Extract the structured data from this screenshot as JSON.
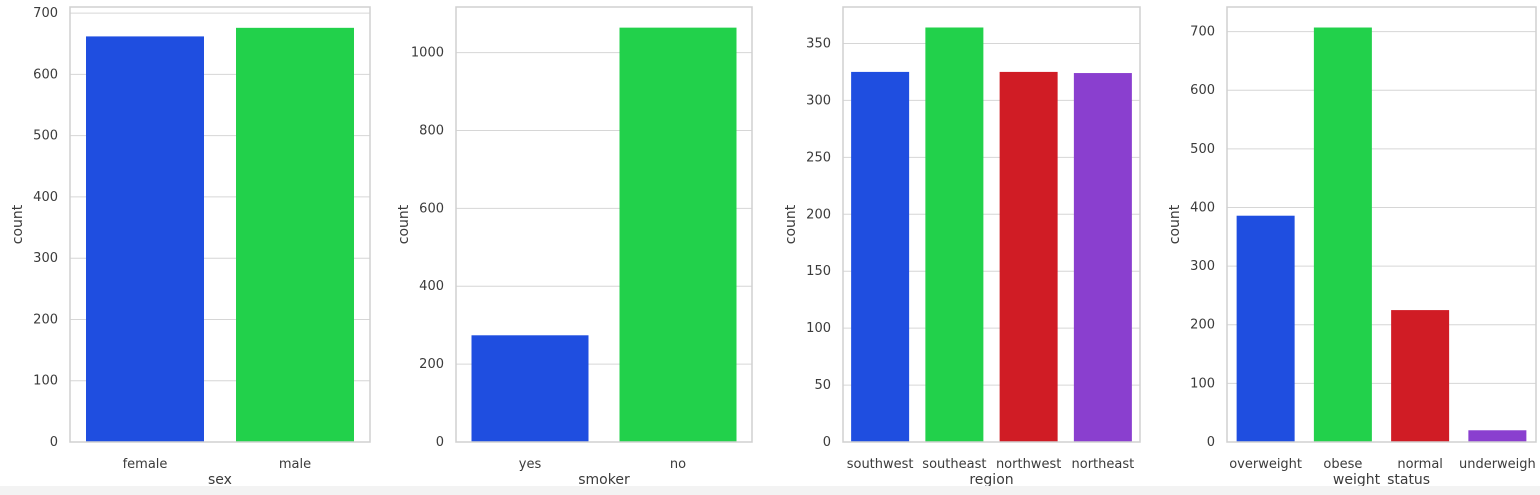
{
  "chart_data": [
    {
      "type": "bar",
      "xlabel": "sex",
      "ylabel": "count",
      "categories": [
        "female",
        "male"
      ],
      "values": [
        662,
        676
      ],
      "colors": [
        "#1f4ee0",
        "#22d14b"
      ],
      "yticks": [
        0,
        100,
        200,
        300,
        400,
        500,
        600,
        700
      ],
      "ytick_labels": [
        "0",
        "100",
        "200",
        "300",
        "400",
        "500",
        "600",
        "700"
      ],
      "ylim": [
        0,
        710
      ],
      "grid": true
    },
    {
      "type": "bar",
      "xlabel": "smoker",
      "ylabel": "count",
      "categories": [
        "yes",
        "no"
      ],
      "values": [
        274,
        1064
      ],
      "colors": [
        "#1f4ee0",
        "#22d14b"
      ],
      "yticks": [
        0,
        200,
        400,
        600,
        800,
        1000
      ],
      "ytick_labels": [
        "0",
        "200",
        "400",
        "600",
        "800",
        "1000"
      ],
      "ylim": [
        0,
        1117
      ],
      "grid": true
    },
    {
      "type": "bar",
      "xlabel": "region",
      "ylabel": "count",
      "categories": [
        "southwest",
        "southeast",
        "northwest",
        "northeast"
      ],
      "values": [
        325,
        364,
        325,
        324
      ],
      "colors": [
        "#1f4ee0",
        "#22d14b",
        "#d01c25",
        "#8a3fcf"
      ],
      "yticks": [
        0,
        50,
        100,
        150,
        200,
        250,
        300,
        350
      ],
      "ytick_labels": [
        "0",
        "50",
        "100",
        "150",
        "200",
        "250",
        "300",
        "350"
      ],
      "ylim": [
        0,
        382
      ],
      "grid": true
    },
    {
      "type": "bar",
      "xlabel": "weight_status",
      "ylabel": "count",
      "categories": [
        "overweight",
        "obese",
        "normal",
        "underweigh"
      ],
      "values": [
        386,
        707,
        225,
        20
      ],
      "colors": [
        "#1f4ee0",
        "#22d14b",
        "#d01c25",
        "#8a3fcf"
      ],
      "yticks": [
        0,
        100,
        200,
        300,
        400,
        500,
        600,
        700
      ],
      "ytick_labels": [
        "0",
        "100",
        "200",
        "300",
        "400",
        "500",
        "600",
        "700"
      ],
      "ylim": [
        0,
        742
      ],
      "grid": true
    }
  ]
}
